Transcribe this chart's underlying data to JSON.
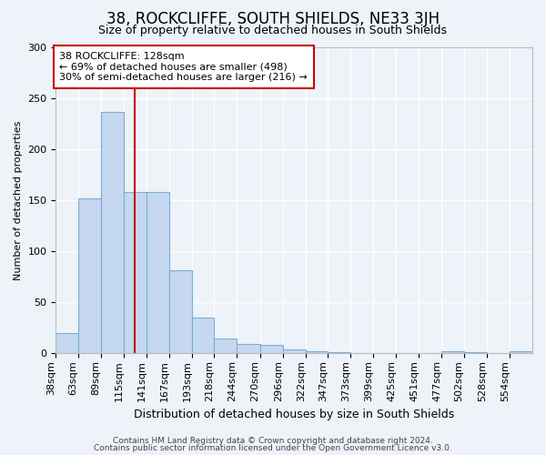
{
  "title": "38, ROCKCLIFFE, SOUTH SHIELDS, NE33 3JH",
  "subtitle": "Size of property relative to detached houses in South Shields",
  "xlabel": "Distribution of detached houses by size in South Shields",
  "ylabel": "Number of detached properties",
  "footnote1": "Contains HM Land Registry data © Crown copyright and database right 2024.",
  "footnote2": "Contains public sector information licensed under the Open Government Licence v3.0.",
  "bin_labels": [
    "38sqm",
    "63sqm",
    "89sqm",
    "115sqm",
    "141sqm",
    "167sqm",
    "193sqm",
    "218sqm",
    "244sqm",
    "270sqm",
    "296sqm",
    "322sqm",
    "347sqm",
    "373sqm",
    "399sqm",
    "425sqm",
    "451sqm",
    "477sqm",
    "502sqm",
    "528sqm",
    "554sqm"
  ],
  "bar_values": [
    20,
    152,
    236,
    158,
    158,
    81,
    35,
    15,
    9,
    8,
    4,
    2,
    1,
    0,
    0,
    0,
    0,
    2,
    1,
    0,
    2
  ],
  "bar_color": "#c5d8f0",
  "bar_edge_color": "#7aadd4",
  "background_color": "#eef2f9",
  "grid_color": "#ffffff",
  "vline_x": 128,
  "vline_color": "#cc0000",
  "annotation_text": "38 ROCKCLIFFE: 128sqm\n← 69% of detached houses are smaller (498)\n30% of semi-detached houses are larger (216) →",
  "annotation_box_color": "#ffffff",
  "annotation_box_edge": "#cc0000",
  "ylim": [
    0,
    300
  ],
  "bin_edges_sqm": [
    38,
    63,
    89,
    115,
    141,
    167,
    193,
    218,
    244,
    270,
    296,
    322,
    347,
    373,
    399,
    425,
    451,
    477,
    502,
    528,
    554,
    580
  ],
  "title_fontsize": 12,
  "subtitle_fontsize": 9,
  "xlabel_fontsize": 9,
  "ylabel_fontsize": 8,
  "tick_fontsize": 8,
  "footnote_fontsize": 6.5
}
